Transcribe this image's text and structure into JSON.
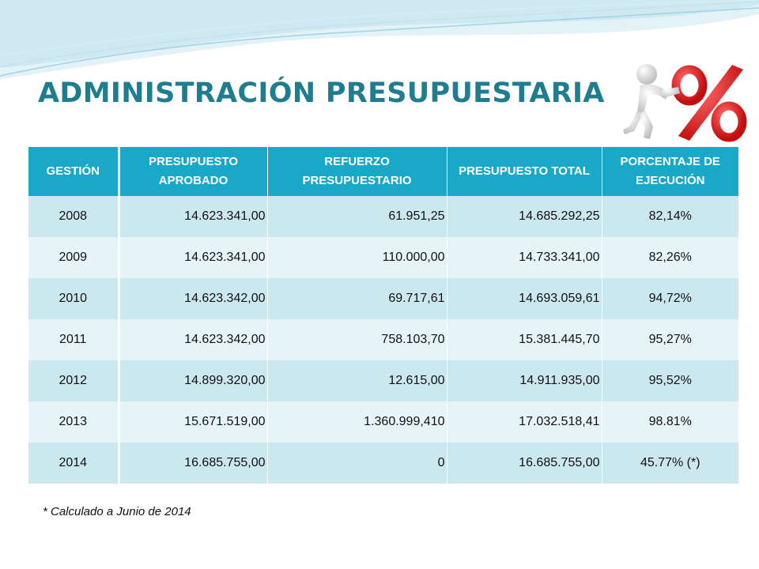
{
  "slide": {
    "title": "ADMINISTRACIÓN PRESUPUESTARIA",
    "accent_color": "#1f7d8f",
    "header_color": "#1aa8c9",
    "logo_icon": "3d-man-pushing-percent-sign-icon",
    "logo_symbol": "%"
  },
  "table": {
    "headers": [
      "GESTIÓN",
      "PRESUPUESTO APROBADO",
      "REFUERZO PRESUPUESTARIO",
      "PRESUPUESTO TOTAL",
      "PORCENTAJE DE EJECUCIÓN"
    ],
    "rows": [
      [
        "2008",
        "14.623.341,00",
        "61.951,25",
        "14.685.292,25",
        "82,14%"
      ],
      [
        "2009",
        "14.623.341,00",
        "110.000,00",
        "14.733.341,00",
        "82,26%"
      ],
      [
        "2010",
        "14.623.342,00",
        "69.717,61",
        "14.693.059,61",
        "94,72%"
      ],
      [
        "2011",
        "14.623.342,00",
        "758.103,70",
        "15.381.445,70",
        "95,27%"
      ],
      [
        "2012",
        "14.899.320,00",
        "12.615,00",
        "14.911.935,00",
        "95,52%"
      ],
      [
        "2013",
        "15.671.519,00",
        "1.360.999,410",
        "17.032.518,41",
        "98.81%"
      ],
      [
        "2014",
        "16.685.755,00",
        "0",
        "16.685.755,00",
        "45.77% (*)"
      ]
    ]
  },
  "footnote": "* Calculado a Junio de 2014"
}
